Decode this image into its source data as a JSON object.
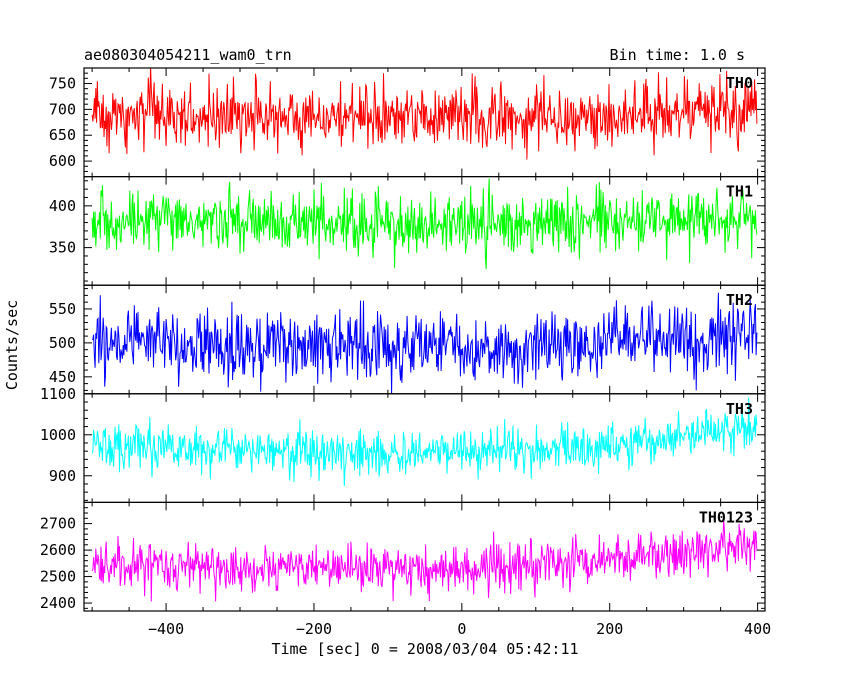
{
  "title_left": "ae080304054211_wam0_trn",
  "title_right": "Bin time: 1.0 s",
  "xlabel": "Time [sec] 0 = 2008/03/04 05:42:11",
  "ylabel": "Counts/sec",
  "chart_data": {
    "type": "line",
    "xlim": [
      -511,
      410
    ],
    "x_ticks": [
      -400,
      -200,
      0,
      200,
      400
    ],
    "x_tick_labels": [
      "−400",
      "−200",
      "0",
      "200",
      "400"
    ],
    "bin_time_s": 1.0,
    "series": [
      {
        "name": "TH0",
        "color": "#ff0000",
        "ylim": [
          570,
          780
        ],
        "y_ticks": [
          600,
          650,
          700,
          750
        ],
        "y_tick_labels": [
          "600",
          "650",
          "700",
          "750"
        ],
        "mean": 690,
        "noise": 30,
        "profile": [
          [
            -500,
            690
          ],
          [
            -100,
            685
          ],
          [
            0,
            685
          ],
          [
            200,
            690
          ],
          [
            300,
            695
          ],
          [
            400,
            700
          ]
        ]
      },
      {
        "name": "TH1",
        "color": "#00ff00",
        "ylim": [
          305,
          435
        ],
        "y_ticks": [
          350,
          400
        ],
        "y_tick_labels": [
          "350",
          "400"
        ],
        "mean": 380,
        "noise": 18,
        "profile": [
          [
            -500,
            380
          ],
          [
            0,
            378
          ],
          [
            200,
            382
          ],
          [
            300,
            384
          ],
          [
            400,
            386
          ]
        ]
      },
      {
        "name": "TH2",
        "color": "#0000ff",
        "ylim": [
          425,
          585
        ],
        "y_ticks": [
          450,
          500,
          550
        ],
        "y_tick_labels": [
          "450",
          "500",
          "550"
        ],
        "mean": 497,
        "noise": 25,
        "profile": [
          [
            -500,
            500
          ],
          [
            -100,
            493
          ],
          [
            100,
            495
          ],
          [
            200,
            500
          ],
          [
            300,
            510
          ],
          [
            400,
            520
          ]
        ]
      },
      {
        "name": "TH3",
        "color": "#00ffff",
        "ylim": [
          835,
          1100
        ],
        "y_ticks": [
          900,
          1000,
          1100
        ],
        "y_tick_labels": [
          "900",
          "1000",
          "1100"
        ],
        "mean": 965,
        "noise": 28,
        "profile": [
          [
            -500,
            970
          ],
          [
            -200,
            960
          ],
          [
            0,
            955
          ],
          [
            200,
            975
          ],
          [
            300,
            995
          ],
          [
            400,
            1020
          ]
        ]
      },
      {
        "name": "TH0123",
        "color": "#ff00ff",
        "ylim": [
          2370,
          2780
        ],
        "y_ticks": [
          2400,
          2500,
          2600,
          2700
        ],
        "y_tick_labels": [
          "2400",
          "2500",
          "2600",
          "2700"
        ],
        "mean": 2540,
        "noise": 45,
        "profile": [
          [
            -500,
            2545
          ],
          [
            -200,
            2530
          ],
          [
            0,
            2525
          ],
          [
            200,
            2560
          ],
          [
            300,
            2590
          ],
          [
            400,
            2630
          ]
        ]
      }
    ]
  }
}
